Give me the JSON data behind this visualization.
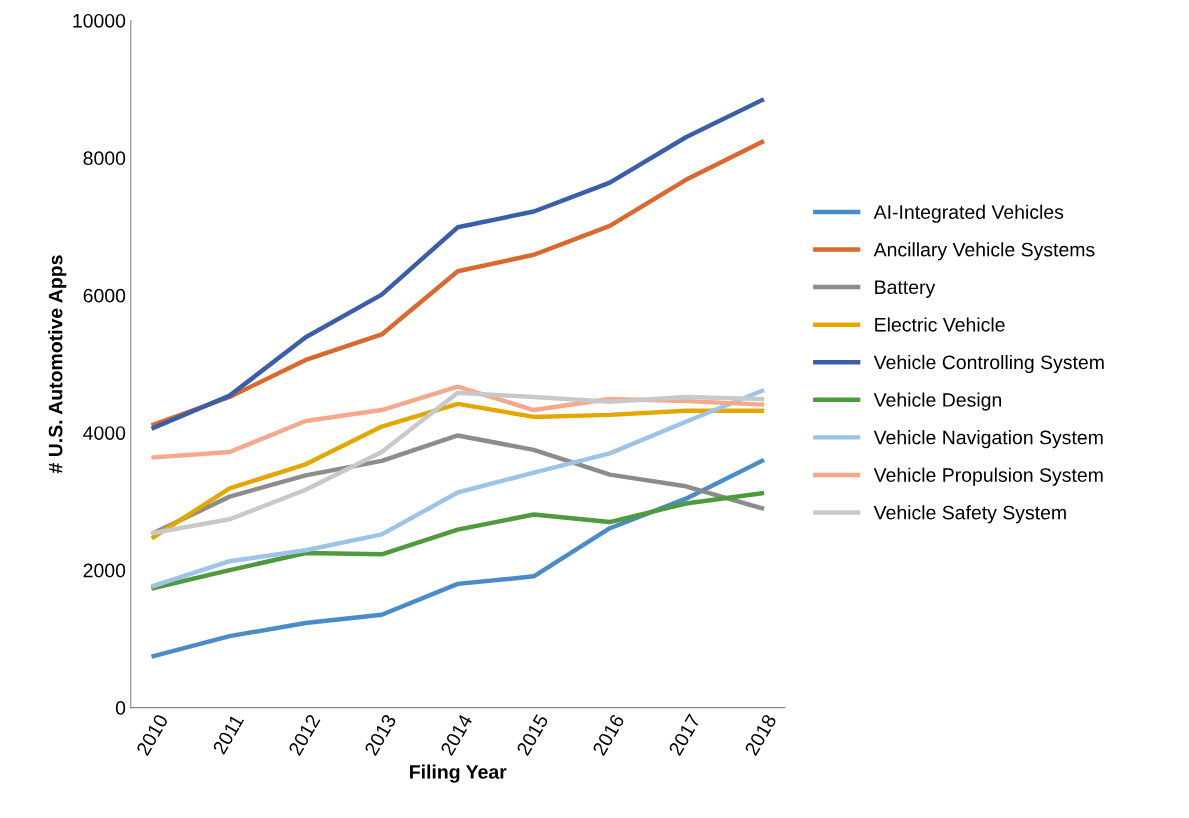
{
  "chart_data": {
    "type": "line",
    "xlabel": "Filing Year",
    "ylabel": "# U.S. Automotive Apps",
    "categories": [
      "2010",
      "2011",
      "2012",
      "2013",
      "2014",
      "2015",
      "2016",
      "2017",
      "2018"
    ],
    "ylim": [
      0,
      10000
    ],
    "yticks": [
      0,
      2000,
      4000,
      6000,
      8000,
      10000
    ],
    "grid": false,
    "legend": "right",
    "marker": "none",
    "line_style": "solid",
    "series": [
      {
        "name": "AI-Integrated Vehicles",
        "color": "#4a8cc6",
        "values": [
          750,
          1040,
          1230,
          1350,
          1800,
          1910,
          2610,
          3040,
          3590
        ]
      },
      {
        "name": "Ancillary Vehicle Systems",
        "color": "#d9692e",
        "values": [
          4120,
          4520,
          5060,
          5430,
          6350,
          6590,
          7010,
          7680,
          8230
        ]
      },
      {
        "name": "Battery",
        "color": "#8c8c8c",
        "values": [
          2540,
          3070,
          3380,
          3590,
          3960,
          3750,
          3390,
          3220,
          2900
        ]
      },
      {
        "name": "Electric Vehicle",
        "color": "#e3a800",
        "values": [
          2480,
          3190,
          3540,
          4090,
          4420,
          4230,
          4260,
          4320,
          4320
        ]
      },
      {
        "name": "Vehicle Controlling System",
        "color": "#3a5ea8",
        "values": [
          4070,
          4540,
          5390,
          6010,
          6990,
          7220,
          7640,
          8300,
          8840
        ]
      },
      {
        "name": "Vehicle Design",
        "color": "#4f9a3c",
        "values": [
          1740,
          2000,
          2250,
          2230,
          2590,
          2810,
          2700,
          2970,
          3120
        ]
      },
      {
        "name": "Vehicle Navigation System",
        "color": "#9dc3e6",
        "values": [
          1770,
          2130,
          2290,
          2520,
          3130,
          3420,
          3700,
          4160,
          4610
        ]
      },
      {
        "name": "Vehicle Propulsion System",
        "color": "#f4a98a",
        "values": [
          3640,
          3720,
          4170,
          4330,
          4670,
          4330,
          4490,
          4460,
          4410
        ]
      },
      {
        "name": "Vehicle Safety System",
        "color": "#c8c8c8",
        "values": [
          2540,
          2740,
          3170,
          3720,
          4580,
          4520,
          4450,
          4520,
          4490
        ]
      }
    ]
  }
}
